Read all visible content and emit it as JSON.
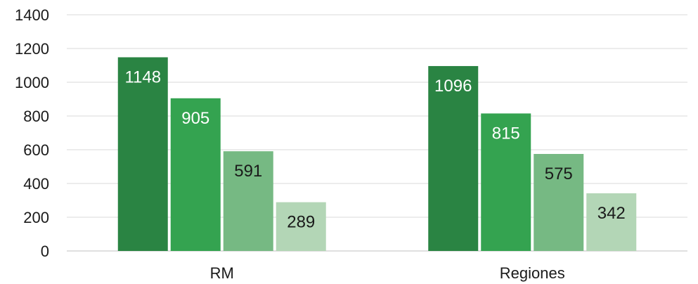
{
  "chart_data": {
    "type": "bar",
    "categories": [
      "RM",
      "Regiones"
    ],
    "series": [
      {
        "values": [
          1148,
          1096
        ],
        "color": "#2a8443",
        "label_color": "#ffffff"
      },
      {
        "values": [
          905,
          815
        ],
        "color": "#34a350",
        "label_color": "#ffffff"
      },
      {
        "values": [
          591,
          575
        ],
        "color": "#76b983",
        "label_color": "#1a1a1a"
      },
      {
        "values": [
          289,
          342
        ],
        "color": "#b3d6b6",
        "label_color": "#1a1a1a"
      }
    ],
    "title": "",
    "xlabel": "",
    "ylabel": "",
    "ylim": [
      0,
      1400
    ],
    "yticks": [
      0,
      200,
      400,
      600,
      800,
      1000,
      1200,
      1400
    ],
    "grid": true,
    "legend": "none",
    "data_labels": true
  }
}
